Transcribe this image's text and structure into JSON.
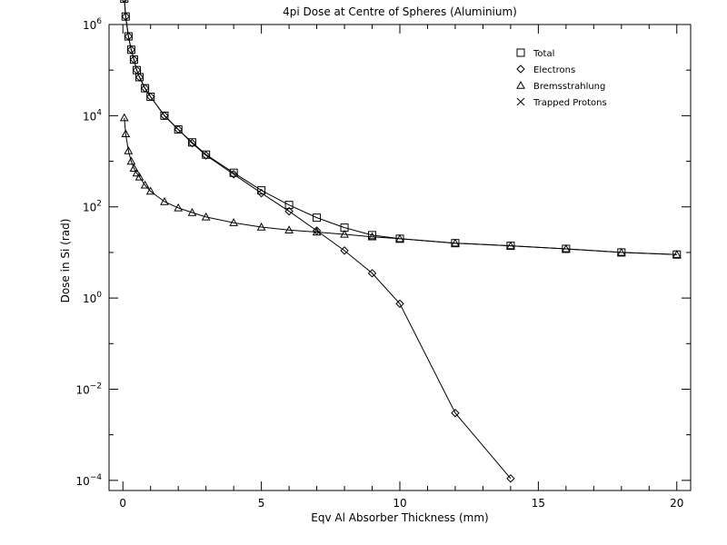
{
  "chart_data": {
    "type": "line",
    "title": "4pi Dose at Centre of Spheres (Aluminium)",
    "xlabel": "Eqv Al Absorber Thickness (mm)",
    "ylabel": "Dose in Si (rad)",
    "xlim": [
      -0.5,
      20.5
    ],
    "ylim": [
      6e-05,
      1000000
    ],
    "yscale": "log",
    "grid": false,
    "legend_position": "top-right",
    "x_ticks": [
      {
        "value": 0,
        "label": "0"
      },
      {
        "value": 5,
        "label": "5"
      },
      {
        "value": 10,
        "label": "10"
      },
      {
        "value": 15,
        "label": "15"
      },
      {
        "value": 20,
        "label": "20"
      }
    ],
    "y_ticks": [
      {
        "value": 0.0001,
        "label_base": "10",
        "label_exp": "−4"
      },
      {
        "value": 0.01,
        "label_base": "10",
        "label_exp": "−2"
      },
      {
        "value": 1,
        "label_base": "10",
        "label_exp": "0"
      },
      {
        "value": 100,
        "label_base": "10",
        "label_exp": "2"
      },
      {
        "value": 10000,
        "label_base": "10",
        "label_exp": "4"
      },
      {
        "value": 1000000,
        "label_base": "10",
        "label_exp": "6"
      }
    ],
    "series": [
      {
        "name": "Total",
        "marker": "square",
        "x": [
          0.05,
          0.1,
          0.2,
          0.3,
          0.4,
          0.5,
          0.6,
          0.8,
          1.0,
          1.5,
          2.0,
          2.5,
          3.0,
          4.0,
          5.0,
          6.0,
          7.0,
          8.0,
          9.0,
          10.0,
          12.0,
          14.0,
          16.0,
          18.0,
          20.0
        ],
        "y": [
          3700000,
          1500000,
          550000,
          280000,
          170000,
          100000,
          70000,
          40000,
          26000,
          10000,
          5000,
          2600,
          1400,
          560,
          230,
          110,
          58,
          35,
          24,
          20,
          16,
          14,
          12,
          10,
          9
        ]
      },
      {
        "name": "Electrons",
        "marker": "diamond",
        "x": [
          0.05,
          0.1,
          0.2,
          0.3,
          0.4,
          0.5,
          0.6,
          0.8,
          1.0,
          1.5,
          2.0,
          2.5,
          3.0,
          4.0,
          5.0,
          6.0,
          7.0,
          8.0,
          9.0,
          10.0,
          12.0,
          14.0
        ],
        "y": [
          3700000,
          1500000,
          550000,
          280000,
          170000,
          100000,
          70000,
          40000,
          26000,
          10000,
          5000,
          2500,
          1350,
          520,
          200,
          80,
          30,
          11,
          3.5,
          0.75,
          0.003,
          0.00011
        ]
      },
      {
        "name": "Bremsstrahlung",
        "marker": "triangle",
        "x": [
          0.05,
          0.1,
          0.2,
          0.3,
          0.4,
          0.5,
          0.6,
          0.8,
          1.0,
          1.5,
          2.0,
          2.5,
          3.0,
          4.0,
          5.0,
          6.0,
          7.0,
          8.0,
          9.0,
          10.0,
          12.0,
          14.0,
          16.0,
          18.0,
          20.0
        ],
        "y": [
          9000,
          4000,
          1700,
          1000,
          700,
          550,
          450,
          300,
          220,
          130,
          95,
          75,
          60,
          45,
          36,
          31,
          28,
          25,
          22,
          20,
          16,
          14,
          12,
          10,
          9
        ]
      },
      {
        "name": "Trapped Protons",
        "marker": "x",
        "x": [],
        "y": []
      }
    ]
  }
}
